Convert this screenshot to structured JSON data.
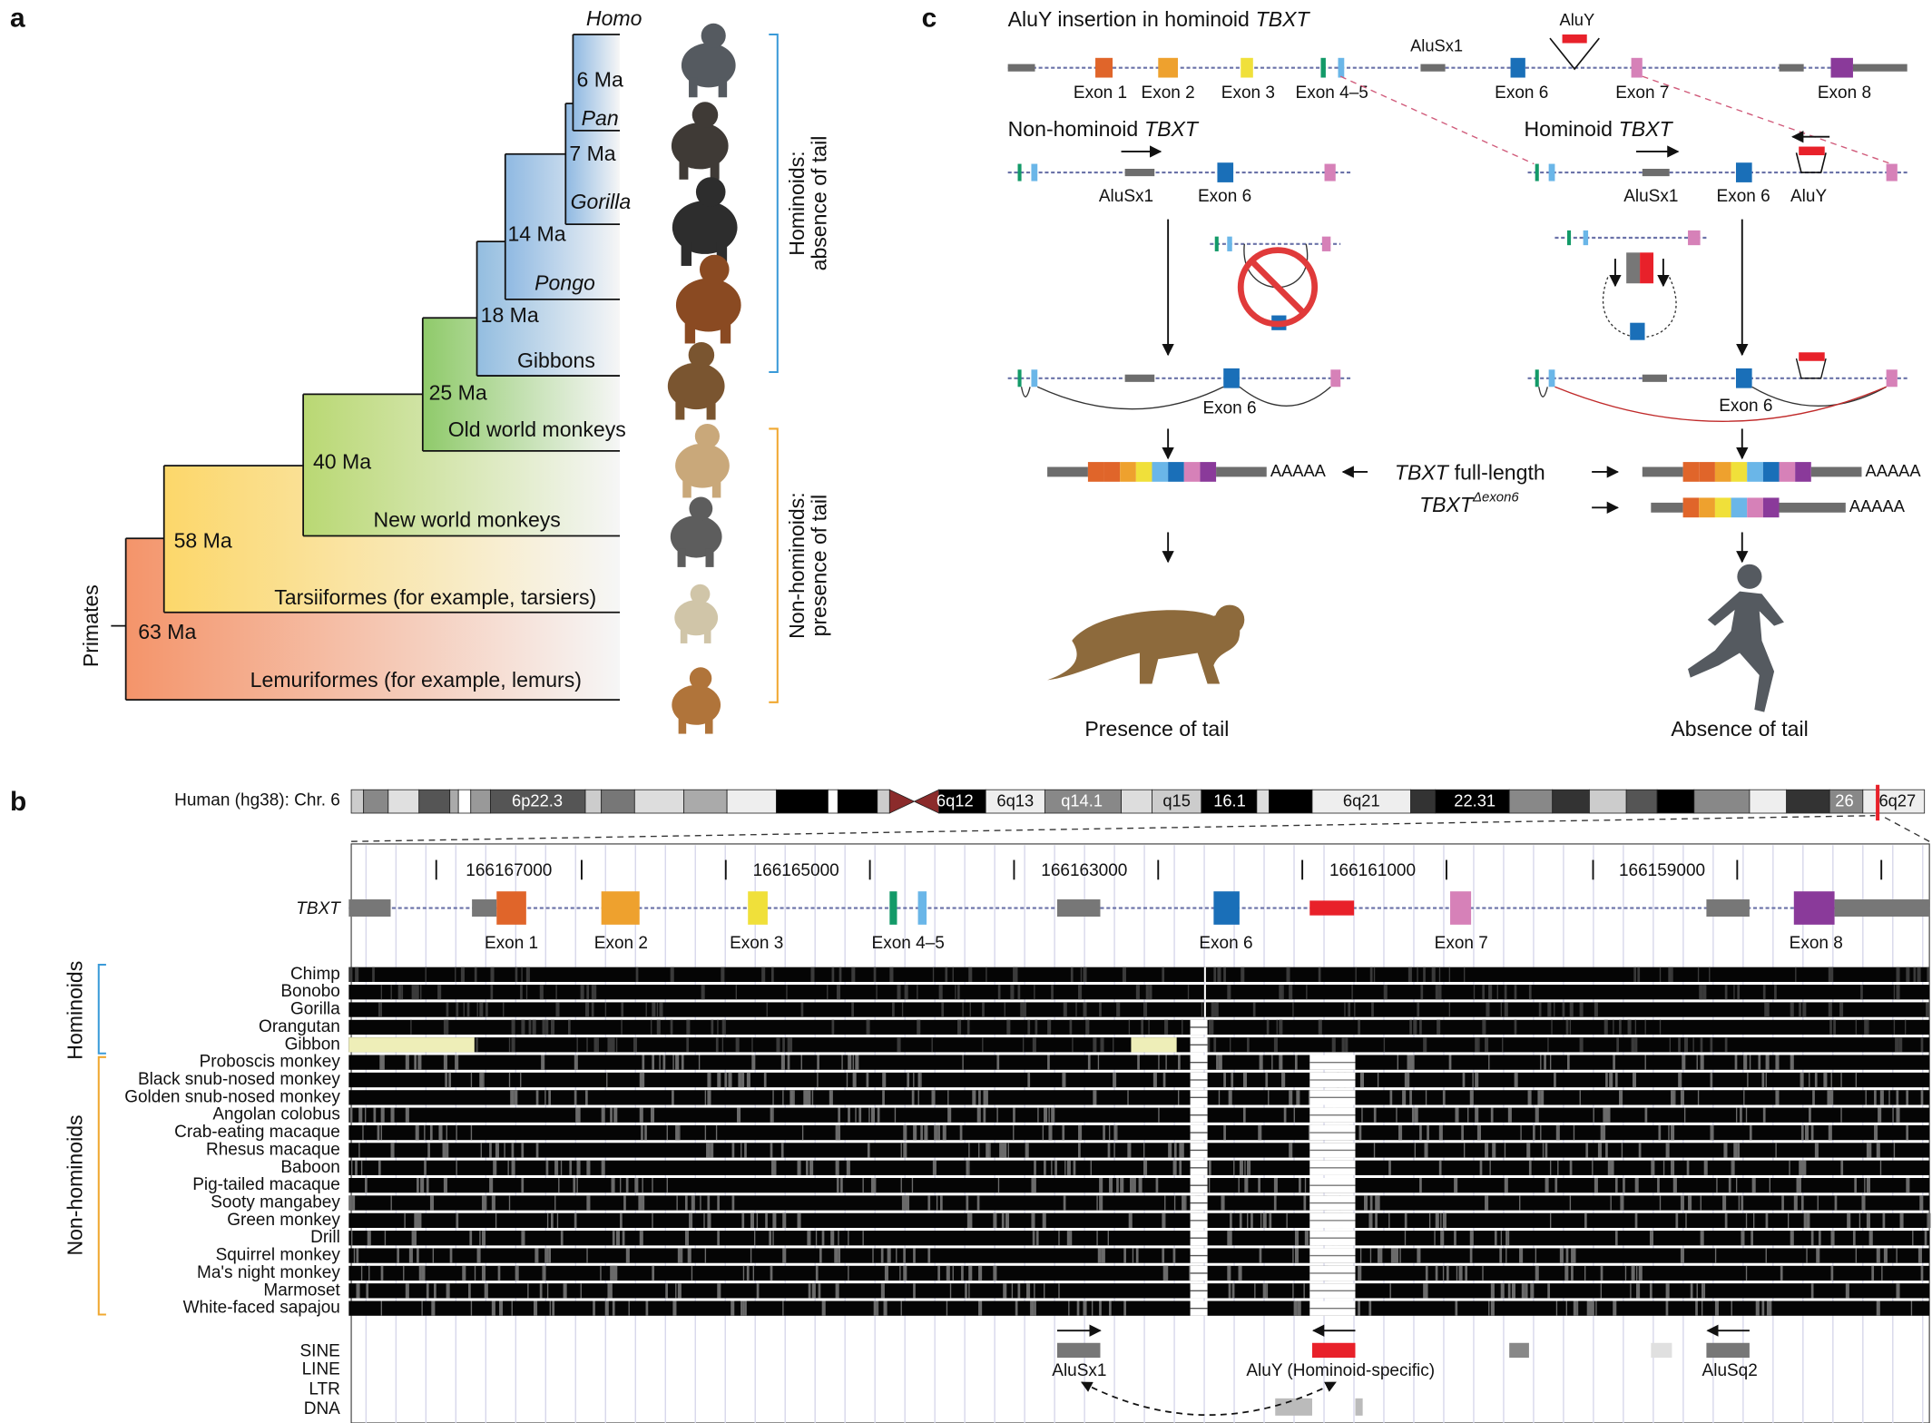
{
  "panel_labels": [
    "a",
    "b",
    "c"
  ],
  "panel_a": {
    "root_label": "Primates",
    "divergence_times": [
      "6 Ma",
      "7 Ma",
      "14 Ma",
      "18 Ma",
      "25 Ma",
      "40 Ma",
      "58 Ma",
      "63 Ma"
    ],
    "taxa": [
      "Homo",
      "Pan",
      "Gorilla",
      "Pongo",
      "Gibbons",
      "Old world monkeys",
      "New world monkeys",
      "Tarsiiformes (for example, tarsiers)",
      "Lemuriformes (for example, lemurs)"
    ],
    "groups": [
      {
        "lines": [
          "Hominoids:",
          "absence of tail"
        ]
      },
      {
        "lines": [
          "Non-hominoids:",
          "presence of tail"
        ]
      }
    ]
  },
  "panel_b": {
    "chromosome_label": "Human (hg38): Chr. 6",
    "bands": [
      "6p22.3",
      "6q12",
      "6q13",
      "q14.1",
      "q15",
      "16.1",
      "6q21",
      "22.31",
      "26",
      "6q27"
    ],
    "coordinates": [
      "166167000",
      "166165000",
      "166163000",
      "166161000",
      "166159000"
    ],
    "gene": "TBXT",
    "exons": [
      "Exon 1",
      "Exon 2",
      "Exon 3",
      "Exon 4–5",
      "Exon 6",
      "Exon 7",
      "Exon 8"
    ],
    "groups": [
      "Hominoids",
      "Non-hominoids"
    ],
    "species": [
      "Chimp",
      "Bonobo",
      "Gorilla",
      "Orangutan",
      "Gibbon",
      "Proboscis monkey",
      "Black snub-nosed monkey",
      "Golden snub-nosed monkey",
      "Angolan colobus",
      "Crab-eating macaque",
      "Rhesus macaque",
      "Baboon",
      "Pig-tailed macaque",
      "Sooty mangabey",
      "Green monkey",
      "Drill",
      "Squirrel monkey",
      "Ma's night monkey",
      "Marmoset",
      "White-faced sapajou"
    ],
    "repeat_classes": [
      "SINE",
      "LINE",
      "LTR",
      "DNA"
    ],
    "repeats": [
      "AluSx1",
      "AluY (Hominoid-specific)",
      "AluSq2"
    ]
  },
  "panel_c": {
    "title": {
      "text": "AluY insertion in hominoid",
      "gene": "TBXT"
    },
    "insertion_label": "AluY",
    "element_label": "AluSx1",
    "exons": [
      "Exon 1",
      "Exon 2",
      "Exon 3",
      "Exon 4–5",
      "Exon 6",
      "Exon 7",
      "Exon 8"
    ],
    "non_hominoid": {
      "title": "Non-hominoid",
      "gene": "TBXT",
      "labels": [
        "AluSx1",
        "Exon 6"
      ],
      "spliced_label": "Exon 6",
      "poly_a": "AAAAA",
      "phenotype": "Presence of tail"
    },
    "hominoid": {
      "title": "Hominoid",
      "gene": "TBXT",
      "labels": [
        "AluSx1",
        "Exon 6",
        "AluY"
      ],
      "spliced_label": "Exon 6",
      "poly_a": [
        "AAAAA",
        "AAAAA"
      ],
      "phenotype": "Absence of tail"
    },
    "transcripts": [
      {
        "gene": "TBXT",
        "suffix": "full-length"
      },
      {
        "gene": "TBXT",
        "superscript": "Δexon6"
      }
    ]
  }
}
